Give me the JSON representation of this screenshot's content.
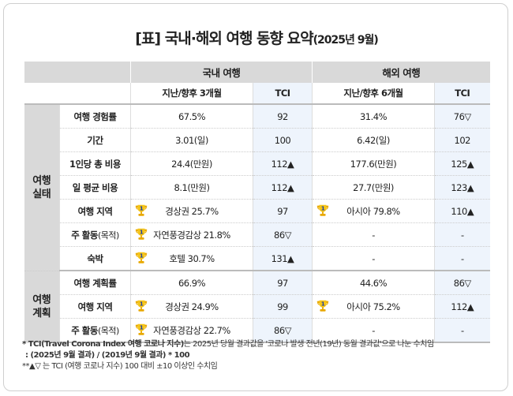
{
  "title": {
    "main": "[표] 국내·해외 여행 동향 요약",
    "sub": "(2025년 9월)"
  },
  "headers": {
    "domestic": "국내 여행",
    "overseas": "해외 여행",
    "domestic_period": "지난/향후 3개월",
    "overseas_period": "지난/향후 6개월",
    "tci": "TCI"
  },
  "groups": [
    {
      "label_line1": "여행",
      "label_line2": "실태"
    },
    {
      "label_line1": "여행",
      "label_line2": "계획"
    }
  ],
  "rows": [
    {
      "item": "여행 경험률",
      "item_sub": "",
      "dom": "67.5%",
      "dom_tci": "92",
      "ovs": "31.4%",
      "ovs_tci": "76▽",
      "dom_trophy": false,
      "ovs_trophy": false
    },
    {
      "item": "기간",
      "item_sub": "",
      "dom": "3.01(일)",
      "dom_tci": "100",
      "ovs": "6.42(일)",
      "ovs_tci": "102",
      "dom_trophy": false,
      "ovs_trophy": false
    },
    {
      "item": "1인당 총 비용",
      "item_sub": "",
      "dom": "24.4(만원)",
      "dom_tci": "112▲",
      "ovs": "177.6(만원)",
      "ovs_tci": "125▲",
      "dom_trophy": false,
      "ovs_trophy": false
    },
    {
      "item": "일 평균 비용",
      "item_sub": "",
      "dom": "8.1(만원)",
      "dom_tci": "112▲",
      "ovs": "27.7(만원)",
      "ovs_tci": "123▲",
      "dom_trophy": false,
      "ovs_trophy": false
    },
    {
      "item": "여행 지역",
      "item_sub": "",
      "dom": "경상권 25.7%",
      "dom_tci": "97",
      "ovs": "아시아 79.8%",
      "ovs_tci": "110▲",
      "dom_trophy": true,
      "ovs_trophy": true
    },
    {
      "item": "주 활동",
      "item_sub": "(목적)",
      "dom": "자연풍경감상 21.8%",
      "dom_tci": "86▽",
      "ovs": "-",
      "ovs_tci": "-",
      "dom_trophy": true,
      "ovs_trophy": false
    },
    {
      "item": "숙박",
      "item_sub": "",
      "dom": "호텔 30.7%",
      "dom_tci": "131▲",
      "ovs": "-",
      "ovs_tci": "-",
      "dom_trophy": true,
      "ovs_trophy": false
    },
    {
      "item": "여행 계획률",
      "item_sub": "",
      "dom": "66.9%",
      "dom_tci": "97",
      "ovs": "44.6%",
      "ovs_tci": "86▽",
      "dom_trophy": false,
      "ovs_trophy": false
    },
    {
      "item": "여행 지역",
      "item_sub": "",
      "dom": "경상권 24.9%",
      "dom_tci": "99",
      "ovs": "아시아 75.2%",
      "ovs_tci": "112▲",
      "dom_trophy": true,
      "ovs_trophy": true
    },
    {
      "item": "주 활동",
      "item_sub": "(목적)",
      "dom": "자연풍경감상 22.7%",
      "dom_tci": "86▽",
      "ovs": "-",
      "ovs_tci": "-",
      "dom_trophy": true,
      "ovs_trophy": false
    }
  ],
  "trophy_rank": "1",
  "notes": {
    "n1_bold": "* TCI(Travel Corona Index 여행 코로나 지수)",
    "n1_rest": "는 2025년 당월 결과값을 '코로나 발생 전년(19년) 동월 결과값'으로 나눈 수치임",
    "n2": ": (2025년 9월 결과) / (2019년 9월 결과) * 100",
    "n3": "**▲▽ 는 TCI (여행 코로나 지수) 100 대비 ±10 이상인 수치임"
  }
}
